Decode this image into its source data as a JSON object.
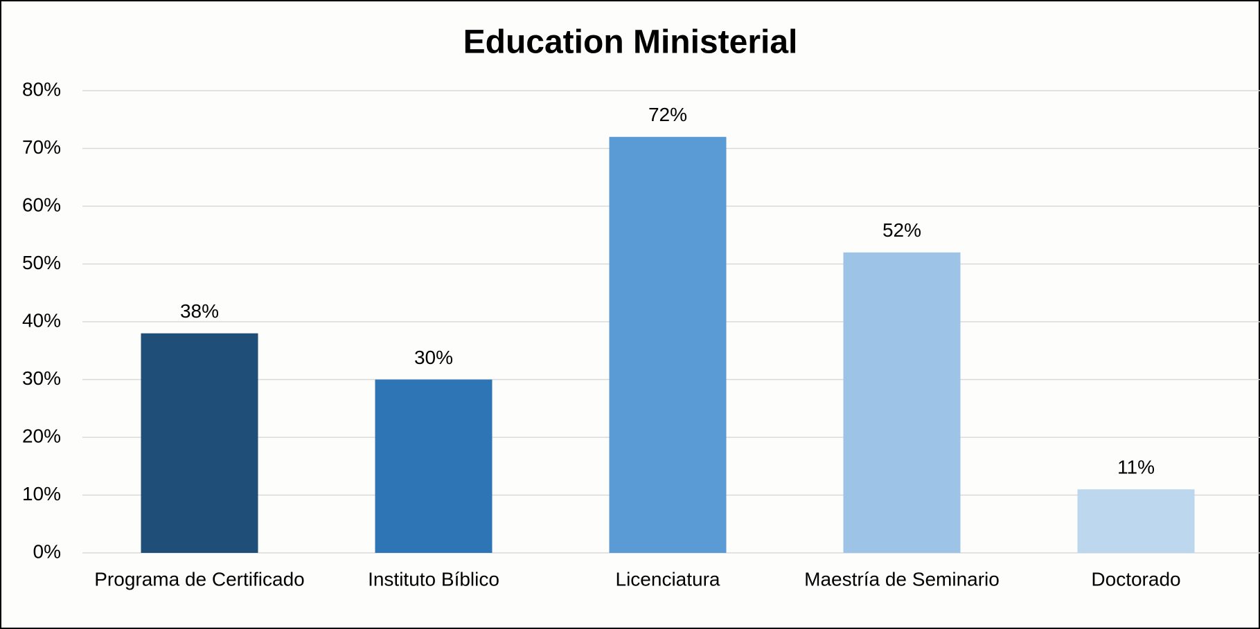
{
  "chart_data": {
    "type": "bar",
    "title": "Education Ministerial",
    "categories": [
      "Programa de Certificado",
      "Instituto Bíblico",
      "Licenciatura",
      "Maestría de Seminario",
      "Doctorado"
    ],
    "values": [
      38,
      30,
      72,
      52,
      11
    ],
    "value_labels": [
      "38%",
      "30%",
      "72%",
      "52%",
      "11%"
    ],
    "colors": [
      "#1f4e79",
      "#2e75b6",
      "#5b9bd5",
      "#9dc3e6",
      "#bdd7ee"
    ],
    "ylim": [
      0,
      80
    ],
    "yticks": [
      {
        "value": 0,
        "label": "0%"
      },
      {
        "value": 10,
        "label": "10%"
      },
      {
        "value": 20,
        "label": "20%"
      },
      {
        "value": 30,
        "label": "30%"
      },
      {
        "value": 40,
        "label": "40%"
      },
      {
        "value": 50,
        "label": "50%"
      },
      {
        "value": 60,
        "label": "60%"
      },
      {
        "value": 70,
        "label": "70%"
      },
      {
        "value": 80,
        "label": "80%"
      }
    ],
    "grid": true
  }
}
